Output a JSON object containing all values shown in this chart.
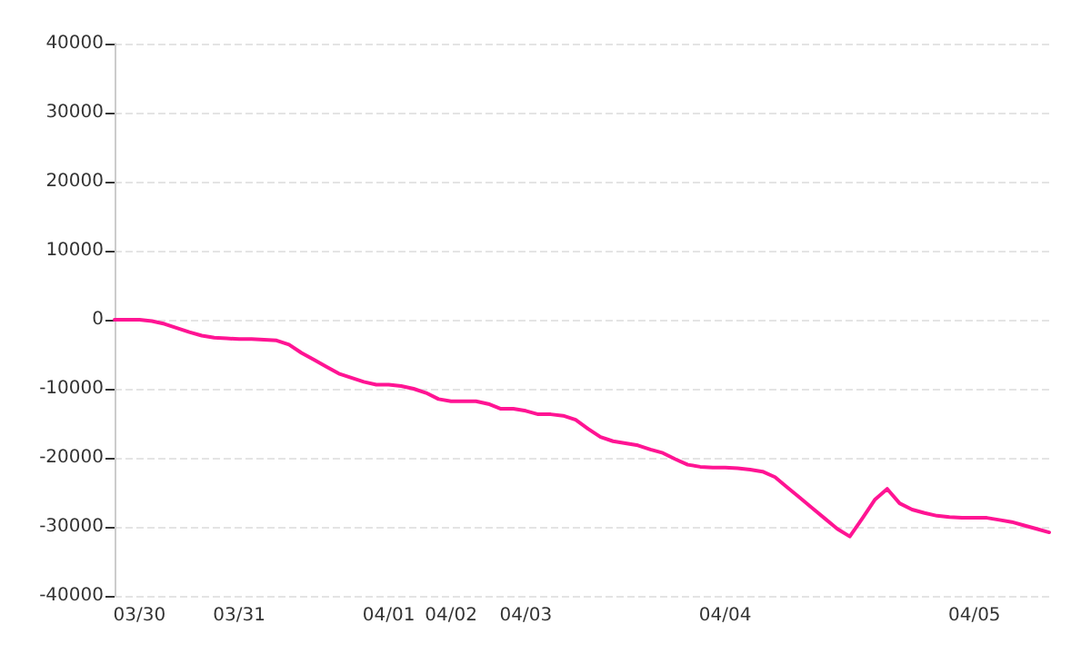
{
  "chart_data": {
    "type": "line",
    "categories": [
      null,
      null,
      "03/30",
      null,
      null,
      null,
      null,
      null,
      null,
      null,
      "03/31",
      null,
      null,
      null,
      null,
      null,
      null,
      null,
      null,
      null,
      null,
      null,
      "04/01",
      null,
      null,
      null,
      null,
      "04/02",
      null,
      null,
      null,
      null,
      null,
      "04/03",
      null,
      null,
      null,
      null,
      null,
      null,
      null,
      null,
      null,
      null,
      null,
      null,
      null,
      null,
      null,
      "04/04",
      null,
      null,
      null,
      null,
      null,
      null,
      null,
      null,
      null,
      null,
      null,
      null,
      null,
      null,
      null,
      null,
      null,
      null,
      null,
      "04/05",
      null,
      null,
      null,
      null,
      null,
      null
    ],
    "series": [
      {
        "color": "#ff1493",
        "values": [
          0,
          0,
          0,
          -200,
          -600,
          -1200,
          -1800,
          -2300,
          -2600,
          -2700,
          -2800,
          -2800,
          -2900,
          -3000,
          -3600,
          -4800,
          -5800,
          -6800,
          -7800,
          -8400,
          -9000,
          -9400,
          -9400,
          -9600,
          -10000,
          -10600,
          -11500,
          -11800,
          -11800,
          -11800,
          -12200,
          -12900,
          -12900,
          -13200,
          -13700,
          -13700,
          -13900,
          -14500,
          -15800,
          -17000,
          -17600,
          -17900,
          -18200,
          -18800,
          -19300,
          -20200,
          -21000,
          -21300,
          -21400,
          -21400,
          -21500,
          -21700,
          -22000,
          -22800,
          -24300,
          -25800,
          -27300,
          -28800,
          -30300,
          -31400,
          -28800,
          -26100,
          -24500,
          -26600,
          -27500,
          -28000,
          -28400,
          -28600,
          -28700,
          -28700,
          -28700,
          -29000,
          -29300,
          -29800,
          -30300,
          -30800
        ]
      }
    ],
    "ylim": [
      -40000,
      40000
    ],
    "yticks": [
      -40000,
      -30000,
      -20000,
      -10000,
      0,
      10000,
      20000,
      30000,
      40000
    ],
    "grid": "y",
    "marker": "none",
    "line_style": "solid"
  }
}
